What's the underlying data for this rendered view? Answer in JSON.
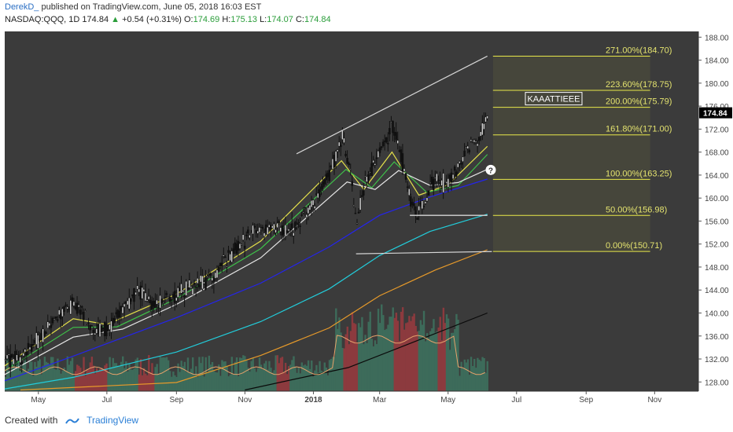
{
  "header": {
    "author": "DerekD_",
    "published": "published on TradingView.com, June 05, 2018 16:03 EST",
    "symbol": "NASDAQ:QQQ, 1D",
    "last": "174.84",
    "change": "+0.54 (+0.31%)",
    "open_label": "O:",
    "open": "174.69",
    "high_label": "H:",
    "high": "175.13",
    "low_label": "L:",
    "low": "174.07",
    "close_label": "C:",
    "close": "174.84"
  },
  "footer": {
    "created_with": "Created with",
    "brand": "TradingView"
  },
  "colors": {
    "background": "#3b3b3b",
    "candle": "#101010",
    "fib_line": "#e8e84a",
    "fib_text": "#e4e36f",
    "up_volume": "#3d6b5a",
    "down_volume": "#8c3a3e",
    "ma_yellow": "#e3df4a",
    "ma_green": "#3ec24a",
    "ma_white": "#e6e6e6",
    "ma_blue": "#2424ee",
    "ma_cyan": "#22cddb",
    "ma_orange": "#e79a2a",
    "ma_black": "#0a0a0a",
    "trend_line": "#d6d6d6",
    "price_badge": "#000000"
  },
  "annotation_box": "KAAATTIEEE",
  "question_marker": "?",
  "chart_data": {
    "type": "line",
    "x_ticks": [
      "May",
      "Jul",
      "Sep",
      "Nov",
      "2018",
      "Mar",
      "May",
      "Jul",
      "Sep",
      "Nov"
    ],
    "y_ticks": [
      "188.00",
      "184.00",
      "180.00",
      "176.00",
      "172.00",
      "168.00",
      "164.00",
      "160.00",
      "156.00",
      "152.00",
      "148.00",
      "144.00",
      "140.00",
      "136.00",
      "132.00",
      "128.00"
    ],
    "ylim": [
      126.4,
      189
    ],
    "current_price": "174.84",
    "fib_levels": [
      {
        "label": "271.00%(184.70)",
        "value": 184.7
      },
      {
        "label": "223.60%(178.75)",
        "value": 178.75
      },
      {
        "label": "200.00%(175.79)",
        "value": 175.79
      },
      {
        "label": "161.80%(171.00)",
        "value": 171.0
      },
      {
        "label": "100.00%(163.25)",
        "value": 163.25
      },
      {
        "label": "50.00%(156.98)",
        "value": 156.98
      },
      {
        "label": "0.00%(150.71)",
        "value": 150.71
      }
    ],
    "price_path": [
      [
        "2017-04-01",
        131.6
      ],
      [
        "2017-04-15",
        132.4
      ],
      [
        "2017-05-01",
        135.5
      ],
      [
        "2017-05-15",
        139.0
      ],
      [
        "2017-06-01",
        141.5
      ],
      [
        "2017-06-09",
        140.0
      ],
      [
        "2017-06-14",
        137.5
      ],
      [
        "2017-06-30",
        137.0
      ],
      [
        "2017-07-15",
        141.0
      ],
      [
        "2017-07-28",
        144.0
      ],
      [
        "2017-08-10",
        141.5
      ],
      [
        "2017-08-25",
        142.5
      ],
      [
        "2017-09-10",
        144.5
      ],
      [
        "2017-09-25",
        145.5
      ],
      [
        "2017-10-10",
        148.0
      ],
      [
        "2017-10-25",
        151.5
      ],
      [
        "2017-11-10",
        154.5
      ],
      [
        "2017-11-28",
        155.0
      ],
      [
        "2017-12-10",
        154.0
      ],
      [
        "2017-12-25",
        157.5
      ],
      [
        "2018-01-10",
        162.0
      ],
      [
        "2018-01-26",
        170.5
      ],
      [
        "2018-02-02",
        165.0
      ],
      [
        "2018-02-08",
        155.5
      ],
      [
        "2018-02-15",
        163.0
      ],
      [
        "2018-02-27",
        167.5
      ],
      [
        "2018-03-12",
        172.5
      ],
      [
        "2018-03-20",
        167.0
      ],
      [
        "2018-03-27",
        160.5
      ],
      [
        "2018-04-03",
        156.5
      ],
      [
        "2018-04-12",
        160.5
      ],
      [
        "2018-04-20",
        163.5
      ],
      [
        "2018-04-27",
        162.5
      ],
      [
        "2018-05-08",
        164.5
      ],
      [
        "2018-05-18",
        169.0
      ],
      [
        "2018-05-28",
        170.5
      ],
      [
        "2018-06-05",
        174.8
      ]
    ],
    "moving_averages": [
      {
        "color_key": "ma_yellow",
        "points": [
          [
            "2017-04-01",
            130.8
          ],
          [
            "2017-06-01",
            139.0
          ],
          [
            "2017-07-01",
            138.0
          ],
          [
            "2017-09-01",
            143.3
          ],
          [
            "2017-11-15",
            152.5
          ],
          [
            "2018-01-26",
            166.5
          ],
          [
            "2018-02-15",
            161.5
          ],
          [
            "2018-03-12",
            168.0
          ],
          [
            "2018-04-05",
            160.5
          ],
          [
            "2018-05-01",
            162.3
          ],
          [
            "2018-06-05",
            169.0
          ]
        ]
      },
      {
        "color_key": "ma_green",
        "points": [
          [
            "2017-04-01",
            130.0
          ],
          [
            "2017-06-01",
            137.5
          ],
          [
            "2017-07-10",
            137.6
          ],
          [
            "2017-09-01",
            142.5
          ],
          [
            "2017-11-15",
            151.2
          ],
          [
            "2018-01-30",
            165.0
          ],
          [
            "2018-02-22",
            161.8
          ],
          [
            "2018-03-14",
            166.3
          ],
          [
            "2018-04-12",
            161.0
          ],
          [
            "2018-05-10",
            162.2
          ],
          [
            "2018-06-05",
            167.6
          ]
        ]
      },
      {
        "color_key": "ma_white",
        "points": [
          [
            "2017-04-01",
            129.3
          ],
          [
            "2017-06-01",
            135.8
          ],
          [
            "2017-07-15",
            137.2
          ],
          [
            "2017-09-01",
            141.5
          ],
          [
            "2017-11-15",
            149.6
          ],
          [
            "2018-01-31",
            162.8
          ],
          [
            "2018-02-25",
            161.5
          ],
          [
            "2018-03-18",
            164.8
          ],
          [
            "2018-04-15",
            162.2
          ],
          [
            "2018-05-10",
            162.7
          ],
          [
            "2018-06-05",
            165.0
          ]
        ]
      },
      {
        "color_key": "ma_blue",
        "points": [
          [
            "2017-04-01",
            128.2
          ],
          [
            "2017-06-01",
            132.5
          ],
          [
            "2017-09-01",
            139.2
          ],
          [
            "2017-11-15",
            145.2
          ],
          [
            "2018-01-15",
            151.5
          ],
          [
            "2018-03-01",
            157.0
          ],
          [
            "2018-04-15",
            160.2
          ],
          [
            "2018-06-05",
            163.3
          ]
        ]
      },
      {
        "color_key": "ma_cyan",
        "points": [
          [
            "2017-04-01",
            126.8
          ],
          [
            "2017-06-01",
            128.8
          ],
          [
            "2017-09-01",
            133.2
          ],
          [
            "2017-11-15",
            138.5
          ],
          [
            "2018-01-15",
            144.2
          ],
          [
            "2018-03-01",
            150.0
          ],
          [
            "2018-04-15",
            154.2
          ],
          [
            "2018-06-05",
            157.2
          ]
        ]
      },
      {
        "color_key": "ma_orange",
        "points": [
          [
            "2017-04-15",
            126.6
          ],
          [
            "2017-09-01",
            127.9
          ],
          [
            "2017-11-15",
            132.6
          ],
          [
            "2018-01-15",
            137.4
          ],
          [
            "2018-03-01",
            143.0
          ],
          [
            "2018-04-20",
            147.5
          ],
          [
            "2018-06-05",
            151.0
          ]
        ]
      },
      {
        "color_key": "ma_black",
        "points": [
          [
            "2017-11-01",
            126.6
          ],
          [
            "2018-02-01",
            130.5
          ],
          [
            "2018-04-01",
            135.0
          ],
          [
            "2018-06-05",
            140.0
          ]
        ]
      }
    ],
    "trend_lines": [
      {
        "from": [
          "2017-12-17",
          167.7
        ],
        "to": [
          "2018-06-05",
          184.7
        ]
      },
      {
        "from": [
          "2018-02-08",
          150.3
        ],
        "to": [
          "2018-06-09",
          150.7
        ]
      },
      {
        "from": [
          "2018-03-28",
          157.0
        ],
        "to": [
          "2018-06-05",
          157.0
        ]
      },
      {
        "from": [
          "2018-03-28",
          157.0
        ],
        "to": [
          "2018-06-05",
          157.0
        ]
      }
    ],
    "grid": false,
    "legend": "none"
  }
}
